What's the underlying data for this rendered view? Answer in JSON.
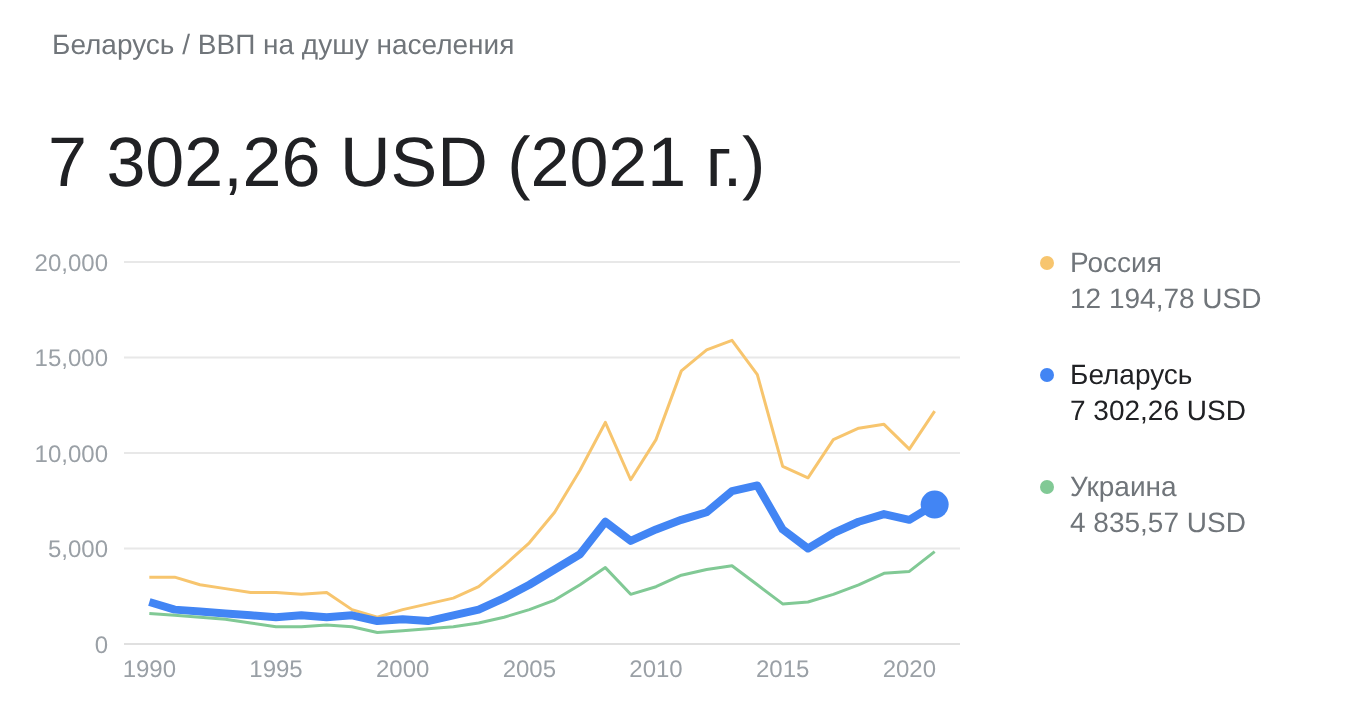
{
  "chart_data": {
    "type": "line",
    "subtitle": "Беларусь / ВВП на душу населения",
    "title": "7 302,26 USD (2021 г.)",
    "x": [
      1990,
      1991,
      1992,
      1993,
      1994,
      1995,
      1996,
      1997,
      1998,
      1999,
      2000,
      2001,
      2002,
      2003,
      2004,
      2005,
      2006,
      2007,
      2008,
      2009,
      2010,
      2011,
      2012,
      2013,
      2014,
      2015,
      2016,
      2017,
      2018,
      2019,
      2020,
      2021
    ],
    "series": [
      {
        "name": "Россия",
        "color": "#f7c56e",
        "values": [
          3500,
          3500,
          3100,
          2900,
          2700,
          2700,
          2600,
          2700,
          1800,
          1400,
          1800,
          2100,
          2400,
          3000,
          4100,
          5300,
          6900,
          9100,
          11600,
          8600,
          10700,
          14300,
          15400,
          15900,
          14100,
          9300,
          8700,
          10700,
          11300,
          11500,
          10200,
          12194.78
        ]
      },
      {
        "name": "Беларусь",
        "color": "#4285f4",
        "values": [
          2200,
          1800,
          1700,
          1600,
          1500,
          1400,
          1500,
          1400,
          1500,
          1200,
          1300,
          1200,
          1500,
          1800,
          2400,
          3100,
          3900,
          4700,
          6400,
          5400,
          6000,
          6500,
          6900,
          8000,
          8300,
          6000,
          5000,
          5800,
          6400,
          6800,
          6500,
          7302.26
        ]
      },
      {
        "name": "Украина",
        "color": "#81c995",
        "values": [
          1600,
          1500,
          1400,
          1300,
          1100,
          900,
          900,
          1000,
          900,
          600,
          700,
          800,
          900,
          1100,
          1400,
          1800,
          2300,
          3100,
          4000,
          2600,
          3000,
          3600,
          3900,
          4100,
          3100,
          2100,
          2200,
          2600,
          3100,
          3700,
          3800,
          4835.57
        ]
      },
      {
        "type": "scatter",
        "marker": "circle",
        "color": "#4285f4",
        "x": [
          2021
        ],
        "values": [
          7302.26
        ]
      }
    ],
    "annotations": [
      "12 194,78 USD",
      "7 302,26 USD",
      "4 835,57 USD"
    ],
    "xlim": [
      1989,
      2022
    ],
    "xticks": [
      1990,
      1995,
      2000,
      2005,
      2010,
      2015,
      2020
    ],
    "ylim": [
      0,
      20000
    ],
    "yticks": [
      0,
      {
        "value": 5000,
        "label": "5,000"
      },
      {
        "value": 10000,
        "label": "10,000"
      },
      {
        "value": 15000,
        "label": "15,000"
      },
      {
        "value": 20000,
        "label": "20,000"
      }
    ],
    "grid": "y",
    "legend": "right"
  }
}
